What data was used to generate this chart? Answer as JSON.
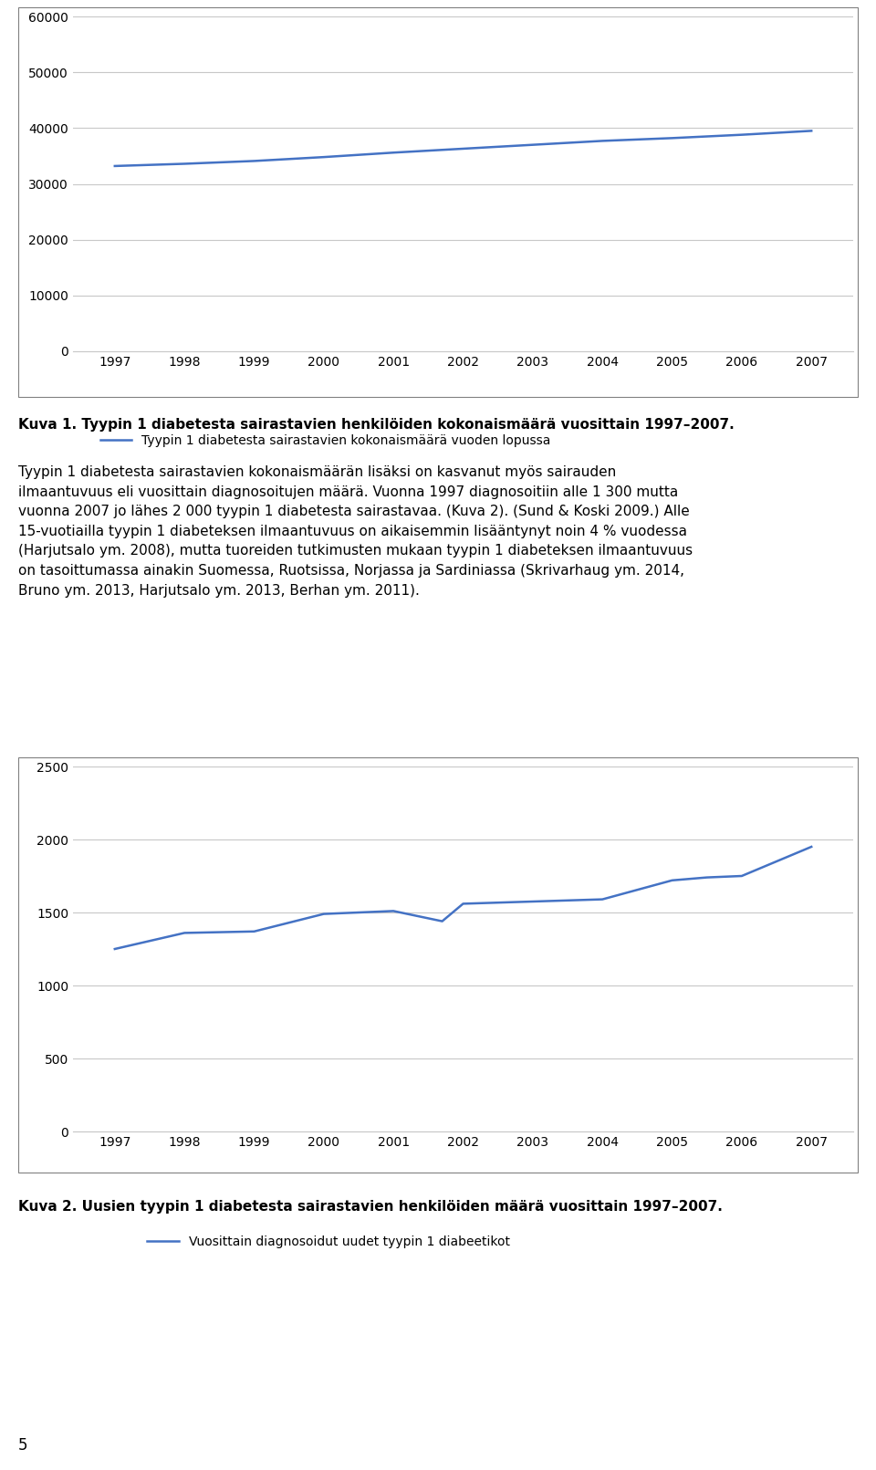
{
  "years": [
    1997,
    1998,
    1999,
    2000,
    2001,
    2002,
    2003,
    2004,
    2005,
    2006,
    2007
  ],
  "chart1_values": [
    33200,
    33600,
    34100,
    34800,
    35600,
    36300,
    37000,
    37700,
    38200,
    38800,
    39500
  ],
  "chart1_ylim": [
    0,
    60000
  ],
  "chart1_yticks": [
    0,
    10000,
    20000,
    30000,
    40000,
    50000,
    60000
  ],
  "chart1_legend": "Tyypin 1 diabetesta sairastavien kokonaismäärä vuoden lopussa",
  "chart2_values": [
    1250,
    1360,
    1370,
    1490,
    1510,
    1440,
    1560,
    1575,
    1590,
    1720,
    1740,
    1750,
    1950
  ],
  "chart2_years": [
    1997,
    1998,
    1999,
    2000,
    2001,
    2001.7,
    2002,
    2003,
    2004,
    2005,
    2005.5,
    2006,
    2007
  ],
  "chart2_ylim": [
    0,
    2500
  ],
  "chart2_yticks": [
    0,
    500,
    1000,
    1500,
    2000,
    2500
  ],
  "chart2_legend": "Vuosittain diagnosoidut uudet tyypin 1 diabeetikot",
  "line_color": "#4472C4",
  "bg_color": "#ffffff",
  "grid_color": "#c8c8c8",
  "title1": "Kuva 1. Tyypin 1 diabetesta sairastavien henkilöiden kokonaismäärä vuosittain 1997–2007.",
  "title2": "Kuva 2. Uusien tyypin 1 diabetesta sairastavien henkilöiden määrä vuosittain 1997–2007.",
  "body_text": "Tyypin 1 diabetesta sairastavien kokonaismäärän lisäksi on kasvanut myös sairauden ilmaantuvuus eli vuosittain diagnosoitujen määrä. Vuonna 1997 diagnosoitiin alle 1 300 mutta vuonna 2007 jo lähes 2 000 tyypin 1 diabetesta sairastavaa. (Kuva 2). (Sund & Koski 2009.) Alle 15-vuotiailla tyypin 1 diabeteksen ilmaantuvuus on aikaisemmin lisääntynyt noin 4 % vuodessa (Harjutsalo ym. 2008), mutta tuoreiden tutkimusten mukaan tyypin 1 diabeteksen ilmaantuvuus on tasoittumassa ainakin Suomessa, Ruotsissa, Norjassa ja Sardiniassa (Skrivarhaug ym. 2014, Bruno ym. 2013, Harjutsalo ym. 2013, Berhan ym. 2011).",
  "page_number": "5",
  "font_size_body": 11,
  "font_size_caption": 11,
  "font_size_tick": 10,
  "font_size_legend": 10
}
